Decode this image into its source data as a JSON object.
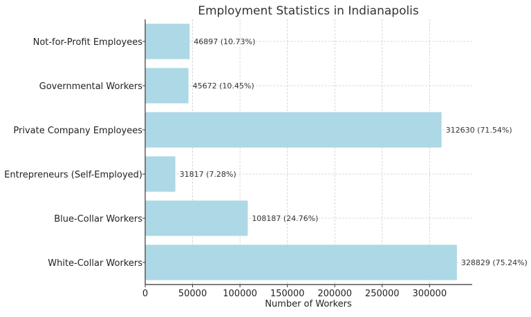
{
  "chart_data": {
    "type": "bar",
    "orientation": "horizontal",
    "title": "Employment Statistics in Indianapolis",
    "xlabel": "Number of Workers",
    "ylabel": "",
    "categories": [
      "White-Collar Workers",
      "Blue-Collar Workers",
      "Entrepreneurs (Self-Employed)",
      "Private Company Employees",
      "Governmental Workers",
      "Not-for-Profit Employees"
    ],
    "values": [
      328829,
      108187,
      31817,
      312630,
      45672,
      46897
    ],
    "value_labels": [
      "328829 (75.24%)",
      "108187 (24.76%)",
      "31817 (7.28%)",
      "312630 (71.54%)",
      "45672 (10.45%)",
      "46897 (10.73%)"
    ],
    "xlim": [
      0,
      345000
    ],
    "xticks": [
      0,
      50000,
      100000,
      150000,
      200000,
      250000,
      300000
    ],
    "xtick_labels": [
      "0",
      "50000",
      "100000",
      "150000",
      "200000",
      "250000",
      "300000"
    ],
    "grid": true,
    "bar_color": "#add8e6"
  }
}
